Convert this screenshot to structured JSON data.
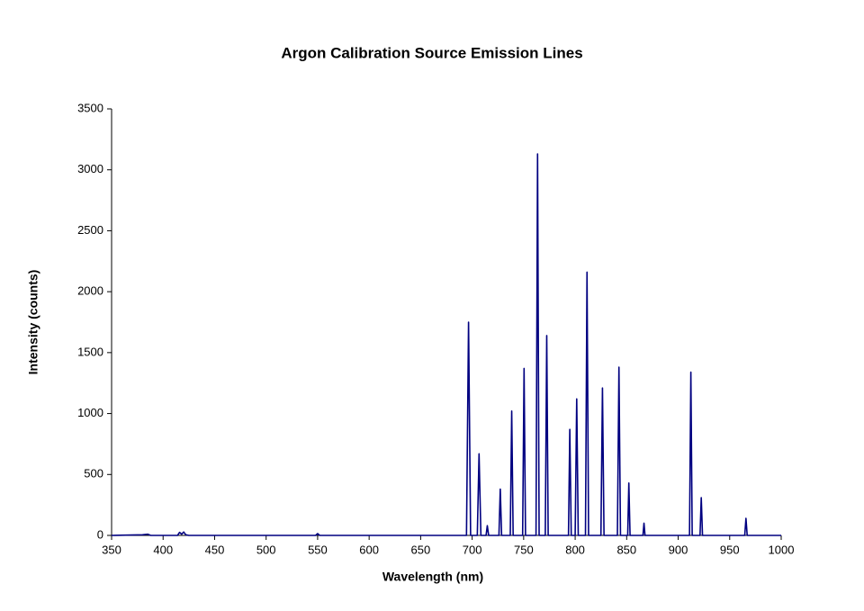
{
  "chart_data": {
    "type": "line",
    "title": "Argon Calibration Source Emission Lines",
    "x_label": "Wavelength (nm)",
    "y_label": "Intensity (counts)",
    "x": [
      350,
      380,
      385,
      388,
      400,
      414,
      416,
      418,
      420,
      422,
      425,
      450,
      548,
      550,
      552,
      600,
      694.5,
      696.5,
      698.5,
      705,
      706.7,
      708.5,
      713.5,
      714.7,
      716,
      726,
      727.3,
      728.6,
      737,
      738.4,
      739.8,
      749,
      750.4,
      751.8,
      762,
      763.5,
      765,
      771,
      772.4,
      773.8,
      793.5,
      794.8,
      796.2,
      800,
      801.5,
      803,
      810,
      811.5,
      813,
      825,
      826.5,
      828,
      841,
      842.5,
      844,
      851,
      852.1,
      853.3,
      865.8,
      866.8,
      867.8,
      911,
      912.3,
      913.6,
      921.2,
      922.4,
      923.6,
      964.6,
      965.8,
      967,
      1000
    ],
    "values": [
      0,
      5,
      10,
      0,
      0,
      0,
      25,
      10,
      28,
      5,
      0,
      0,
      0,
      15,
      0,
      0,
      0,
      1750,
      0,
      0,
      670,
      0,
      0,
      80,
      0,
      0,
      380,
      0,
      0,
      1020,
      0,
      0,
      1370,
      0,
      0,
      3130,
      0,
      0,
      1640,
      0,
      0,
      870,
      0,
      0,
      1120,
      0,
      0,
      2160,
      0,
      0,
      1210,
      0,
      0,
      1380,
      0,
      0,
      430,
      0,
      0,
      100,
      0,
      0,
      1340,
      0,
      0,
      310,
      0,
      0,
      140,
      0,
      0
    ],
    "color": "#000080",
    "xlim": [
      350,
      1000
    ],
    "xticks": [
      350,
      400,
      450,
      500,
      550,
      600,
      650,
      700,
      750,
      800,
      850,
      900,
      950,
      1000
    ],
    "ylim": [
      0,
      3500
    ],
    "yticks": [
      0,
      500,
      1000,
      1500,
      2000,
      2500,
      3000,
      3500
    ],
    "grid": false
  }
}
